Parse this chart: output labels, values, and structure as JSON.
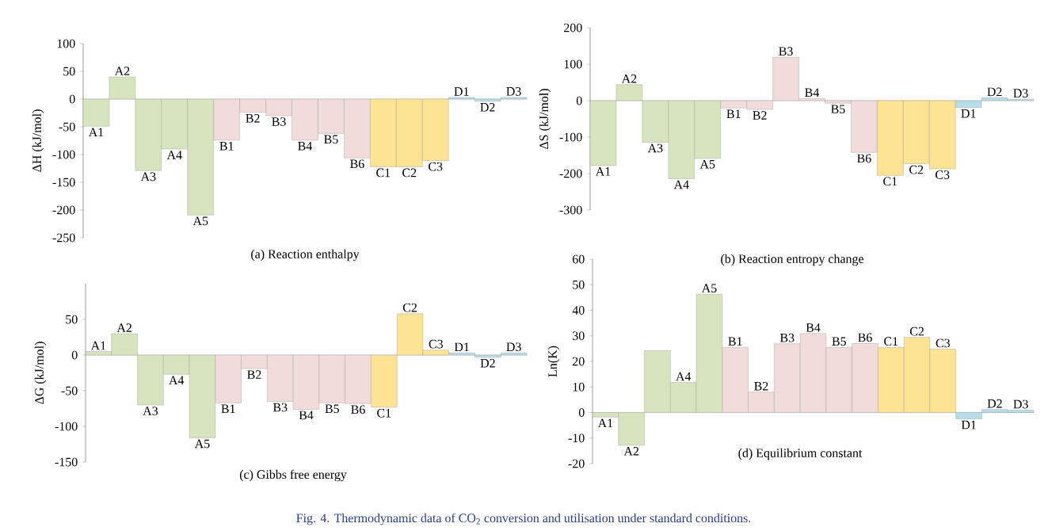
{
  "chart_data": [
    {
      "type": "bar",
      "title": "(a) Reaction enthalpy",
      "ylabel": "ΔH (kJ/mol)",
      "categories": [
        "A1",
        "A2",
        "A3",
        "A4",
        "A5",
        "B1",
        "B2",
        "B3",
        "B4",
        "B5",
        "B6",
        "C1",
        "C2",
        "C3",
        "D1",
        "D2",
        "D3"
      ],
      "values": [
        -49,
        40,
        -129,
        -90,
        -209,
        -74,
        -24,
        -30,
        -74,
        -62,
        -106,
        -122,
        -122,
        -111,
        3,
        -4,
        3
      ],
      "colors": [
        "#d7e4bd",
        "#d7e4bd",
        "#d7e4bd",
        "#d7e4bd",
        "#d7e4bd",
        "#f2dcdb",
        "#f2dcdb",
        "#f2dcdb",
        "#f2dcdb",
        "#f2dcdb",
        "#f2dcdb",
        "#fde394",
        "#fde394",
        "#fde394",
        "#b7dde8",
        "#b7dde8",
        "#b7dde8"
      ],
      "ylim": [
        -250,
        100
      ],
      "yticks": [
        -250,
        -200,
        -150,
        -100,
        -50,
        0,
        50,
        100
      ],
      "annotations": [
        "Fig. 4. Thermodynamic data of CO$_{2}$ conversion and utilisation under standard conditions."
      ]
    },
    {
      "type": "bar",
      "title": "(b) Reaction entropy change",
      "ylabel": "ΔS (kJ/mol)",
      "categories": [
        "A1",
        "A2",
        "A3",
        "A4",
        "A5",
        "B1",
        "B2",
        "B3",
        "B4",
        "B5",
        "B6",
        "C1",
        "C2",
        "C3",
        "D1",
        "D2",
        "D3"
      ],
      "values": [
        -178,
        44,
        -114,
        -214,
        -158,
        -20,
        -24,
        119,
        6,
        -7,
        -142,
        -205,
        -173,
        -187,
        -19,
        8,
        4
      ],
      "colors": [
        "#d7e4bd",
        "#d7e4bd",
        "#d7e4bd",
        "#d7e4bd",
        "#d7e4bd",
        "#f2dcdb",
        "#f2dcdb",
        "#f2dcdb",
        "#f2dcdb",
        "#f2dcdb",
        "#f2dcdb",
        "#fde394",
        "#fde394",
        "#fde394",
        "#b7dde8",
        "#b7dde8",
        "#b7dde8"
      ],
      "ylim": [
        -300,
        200
      ],
      "yticks": [
        -300,
        -200,
        -100,
        0,
        100,
        200
      ]
    },
    {
      "type": "bar",
      "title": "(c) Gibbs free energy",
      "ylabel": "ΔG (kJ/mol)",
      "categories": [
        "A1",
        "A2",
        "A3",
        "A4",
        "A5",
        "B1",
        "B2",
        "B3",
        "B4",
        "B5",
        "B6",
        "C1",
        "C2",
        "C3",
        "D1",
        "D2",
        "D3"
      ],
      "values": [
        5,
        30,
        -70,
        -27,
        -116,
        -67,
        -19,
        -65,
        -76,
        -67,
        -68,
        -73,
        58,
        7,
        3,
        -3,
        3
      ],
      "colors": [
        "#d7e4bd",
        "#d7e4bd",
        "#d7e4bd",
        "#d7e4bd",
        "#d7e4bd",
        "#f2dcdb",
        "#f2dcdb",
        "#f2dcdb",
        "#f2dcdb",
        "#f2dcdb",
        "#f2dcdb",
        "#fde394",
        "#fde394",
        "#fde394",
        "#b7dde8",
        "#b7dde8",
        "#b7dde8"
      ],
      "ylim": [
        -150,
        100
      ],
      "yticks": [
        -150,
        -100,
        -50,
        0,
        50
      ]
    },
    {
      "type": "bar",
      "title": "(d) Equilibrium constant",
      "ylabel": "Ln(K)",
      "categories": [
        "A1",
        "A2",
        null,
        "A4",
        "A5",
        "B1",
        "B2",
        "B3",
        "B4",
        "B5",
        "B6",
        "C1",
        "C2",
        "C3",
        "D1",
        "D2",
        "D3"
      ],
      "values": [
        -1.8,
        -12.8,
        24.2,
        11.8,
        46.3,
        25.5,
        8,
        26.9,
        30.9,
        25.5,
        27,
        25.5,
        29.4,
        24.8,
        -2.5,
        1.2,
        0.9
      ],
      "colors": [
        "#d7e4bd",
        "#d7e4bd",
        "#d7e4bd",
        "#d7e4bd",
        "#d7e4bd",
        "#f2dcdb",
        "#f2dcdb",
        "#f2dcdb",
        "#f2dcdb",
        "#f2dcdb",
        "#f2dcdb",
        "#fde394",
        "#fde394",
        "#fde394",
        "#b7dde8",
        "#b7dde8",
        "#b7dde8"
      ],
      "ylim": [
        -20,
        60
      ],
      "yticks": [
        -20,
        -10,
        0,
        10,
        20,
        30,
        40,
        50,
        60
      ]
    }
  ]
}
